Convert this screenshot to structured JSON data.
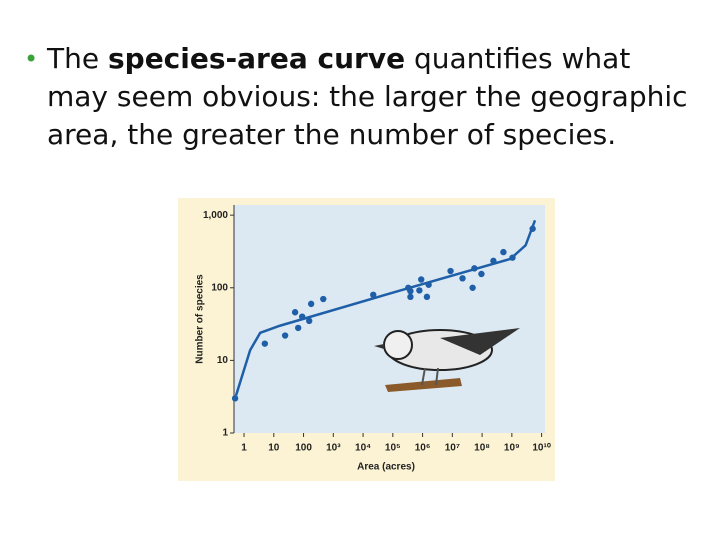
{
  "bullet": {
    "before": "The",
    "bold": "species-area curve",
    "after": "quantifies what may seem obvious: the larger the geographic area, the greater the number of species."
  },
  "chart_data": {
    "type": "scatter",
    "x_label": "Area (acres)",
    "y_label": "Number of species",
    "x": [
      0.5,
      5,
      24,
      52,
      66,
      90,
      155,
      180,
      460,
      22000,
      330000,
      390000,
      390000,
      780000,
      900000,
      1400000,
      1600000,
      8700000,
      22000000,
      55000000,
      48000000,
      95000000,
      240000000,
      520000000,
      1050000000,
      5000000000
    ],
    "values": [
      3,
      17,
      22,
      46,
      28,
      40,
      35,
      60,
      70,
      80,
      100,
      75,
      90,
      92,
      130,
      75,
      110,
      170,
      135,
      185,
      100,
      155,
      235,
      310,
      260,
      650
    ],
    "color": "#1f5fa8",
    "curve": {
      "x": [
        0.54,
        1.6,
        3.5,
        16,
        180000,
        900000000,
        2900000000,
        6000000000
      ],
      "values": [
        3.3,
        13.8,
        24,
        30,
        92,
        250,
        385,
        850
      ],
      "color": "#1f5fa8"
    },
    "xscale": "log",
    "yscale": "log",
    "xlim": [
      0.46,
      13000000000
    ],
    "ylim": [
      1,
      1380
    ],
    "xticks": [
      1,
      10,
      100,
      {
        "value": 1000,
        "label": "10³"
      },
      {
        "value": 10000,
        "label": "10⁴"
      },
      {
        "value": 100000,
        "label": "10⁵"
      },
      {
        "value": 1000000,
        "label": "10⁶"
      },
      {
        "value": 10000000,
        "label": "10⁷"
      },
      {
        "value": 100000000,
        "label": "10⁸"
      },
      {
        "value": 1000000000,
        "label": "10⁹"
      },
      {
        "value": 10000000000,
        "label": "10¹⁰"
      }
    ],
    "yticks": [
      1,
      10,
      100,
      {
        "value": 1000,
        "label": "1,000"
      }
    ]
  }
}
